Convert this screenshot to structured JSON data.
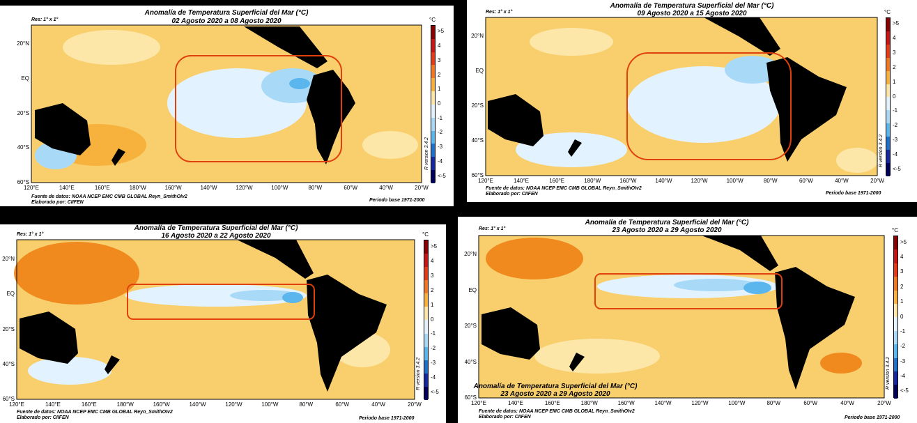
{
  "colors": {
    "warm": "#f9cf6e",
    "warm_strong": "#f08a1e",
    "neutral": "#fdf3c6",
    "cool": "#d6efff",
    "cool_strong": "#5cb6ee",
    "land": "#000000",
    "box": "#e0400c"
  },
  "colorbar": {
    "unit": "°C",
    "labels": [
      ">5",
      "4",
      "3",
      "2",
      "1",
      "0",
      "-1",
      "-2",
      "-3",
      "-4",
      "<-5"
    ],
    "colors": [
      "#8b0000",
      "#c81414",
      "#e43a18",
      "#f27820",
      "#f7b23e",
      "#fde7a8",
      "#e2f3ff",
      "#a8d9f7",
      "#5cb6ee",
      "#1f70c8",
      "#1428a0",
      "#00005a"
    ]
  },
  "axes": {
    "lon_labels": [
      "120°E",
      "140°E",
      "160°E",
      "180°W",
      "160°W",
      "140°W",
      "120°W",
      "100°W",
      "80°W",
      "60°W",
      "40°W",
      "20°W"
    ],
    "lat_labels": [
      "20°N",
      "EQ",
      "20°S",
      "40°S",
      "60°S"
    ]
  },
  "common": {
    "title": "Anomalía de Temperatura Superficial del Mar (°C)",
    "res": "Res: 1° x 1°",
    "source": "Fuente de datos: NOAA NCEP EMC CMB GLOBAL Reyn_SmithOIv2",
    "author": "Elaborado por: CIIFEN",
    "base": "Periodo base 1971-2000",
    "version": "R version 3.4.2"
  },
  "panels": [
    {
      "dates": "02 Agosto 2020 a 08 Agosto 2020"
    },
    {
      "dates": "09 Agosto 2020 a 15 Agosto 2020"
    },
    {
      "dates": "16 Agosto 2020 a 22 Agosto 2020"
    },
    {
      "dates": "23 Agosto 2020 a 29 Agosto 2020"
    }
  ],
  "overlay": {
    "title": "Anomalía de Temperatura Superficial del Mar (°C)",
    "dates": "23 Agosto 2020 a 29 Agosto 2020"
  }
}
